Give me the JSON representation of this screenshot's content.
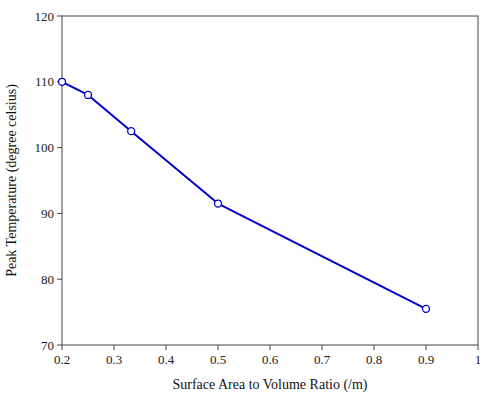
{
  "chart_data": {
    "type": "line",
    "x": [
      0.2,
      0.25,
      0.333,
      0.5,
      0.9
    ],
    "values": [
      110.0,
      108.0,
      102.5,
      91.5,
      75.5
    ],
    "color": "#0000CC",
    "marker": "circle",
    "xlabel": "Surface Area to Volume Ratio (/m)",
    "ylabel": "Peak Temperature (degree celsius)",
    "xlim": [
      0.2,
      1.0
    ],
    "ylim": [
      70,
      120
    ],
    "xticks": [
      0.2,
      0.3,
      0.4,
      0.5,
      0.6,
      0.7,
      0.8,
      0.9,
      1
    ],
    "yticks": [
      70,
      80,
      90,
      100,
      110,
      120
    ],
    "grid": false
  }
}
